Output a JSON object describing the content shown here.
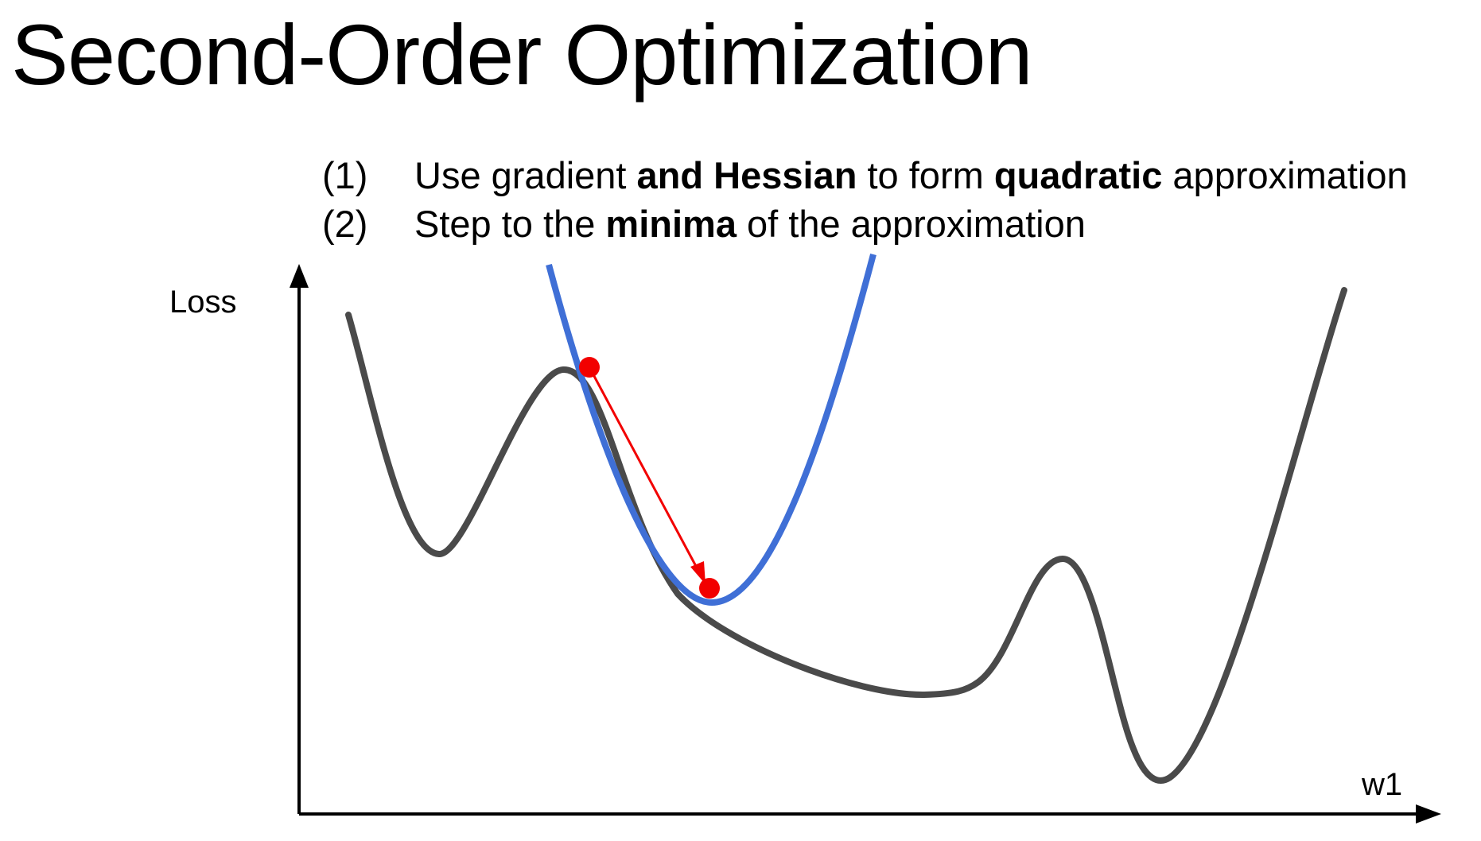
{
  "slide": {
    "title": "Second-Order Optimization",
    "steps": [
      {
        "number": "(1)",
        "parts": [
          {
            "text": "Use gradient ",
            "bold": false
          },
          {
            "text": "and Hessian",
            "bold": true
          },
          {
            "text": " to form ",
            "bold": false
          },
          {
            "text": "quadratic",
            "bold": true
          },
          {
            "text": " approximation",
            "bold": false
          }
        ]
      },
      {
        "number": "(2)",
        "parts": [
          {
            "text": "Step to the ",
            "bold": false
          },
          {
            "text": "minima",
            "bold": true
          },
          {
            "text": " of the approximation",
            "bold": false
          }
        ]
      }
    ]
  },
  "diagram": {
    "y_axis_label": "Loss",
    "x_axis_label": "w1",
    "colors": {
      "loss_curve": "#4a4a4a",
      "quadratic_approximation": "#3f6fd6",
      "step": "#f20000",
      "axes": "#000000"
    }
  }
}
